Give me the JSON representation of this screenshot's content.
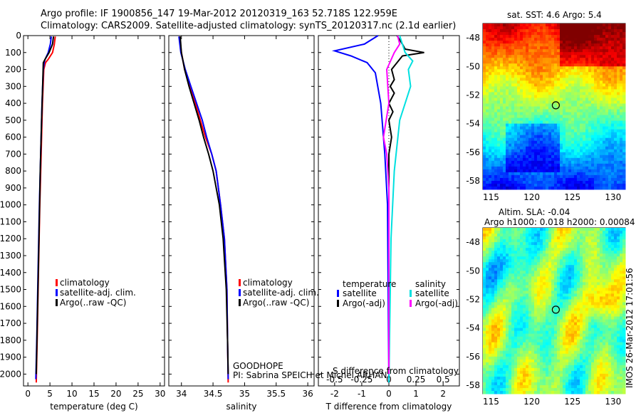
{
  "header": {
    "line1": "Argo profile: IF 1900856_147 19-Mar-2012 20120319_163 52.718S 122.959E",
    "line2": "Climatology: CARS2009. Satellite-adjusted climatology: synTS_20120317.nc (2.1d earlier)"
  },
  "panel_text": {
    "goodhope": "GOODHOPE",
    "pi": "PI: Sabrina SPEICH et Michel ARHAN",
    "s_diff": "S difference from climatology",
    "t_diff": "T difference from climatology",
    "sst_title": "sat. SST: 4.6 Argo: 5.4",
    "sla_title1": "Altim. SLA: -0.04",
    "sla_title2": "Argo h1000: 0.018 h2000: 0.00084",
    "imos_stamp": "IMOS 26-Mar-2012 17:01:56"
  },
  "colors": {
    "climatology": "#ff0000",
    "satellite": "#0000ff",
    "argo": "#000000",
    "sal_satellite": "#00e0e0",
    "sal_argo": "#ff00ff"
  },
  "chart_data": [
    {
      "type": "line",
      "xlabel": "temperature (deg C)",
      "ylabel": "",
      "xlim": [
        -1,
        31
      ],
      "ylim": [
        2070,
        0
      ],
      "xticks": [
        0,
        5,
        10,
        15,
        20,
        25,
        30
      ],
      "yticks": [
        0,
        100,
        200,
        300,
        400,
        500,
        600,
        700,
        800,
        900,
        1000,
        1100,
        1200,
        1300,
        1400,
        1500,
        1600,
        1700,
        1800,
        1900,
        2000
      ],
      "legend": [
        "climatology",
        "satellite-adj. clim.",
        "Argo(..raw -QC)"
      ],
      "series": [
        {
          "name": "climatology",
          "color": "#ff0000",
          "points": [
            [
              6.2,
              5
            ],
            [
              6.0,
              50
            ],
            [
              5.6,
              100
            ],
            [
              4.6,
              140
            ],
            [
              4.0,
              160
            ],
            [
              3.6,
              200
            ],
            [
              3.3,
              400
            ],
            [
              3.0,
              700
            ],
            [
              2.7,
              1000
            ],
            [
              2.4,
              1400
            ],
            [
              2.1,
              1800
            ],
            [
              1.9,
              2050
            ]
          ]
        },
        {
          "name": "satellite-adj. clim.",
          "color": "#0000ff",
          "points": [
            [
              5.3,
              5
            ],
            [
              5.1,
              50
            ],
            [
              4.6,
              100
            ],
            [
              3.9,
              140
            ],
            [
              3.7,
              160
            ],
            [
              3.5,
              200
            ],
            [
              3.2,
              400
            ],
            [
              2.9,
              700
            ],
            [
              2.6,
              1000
            ],
            [
              2.3,
              1400
            ],
            [
              2.0,
              1800
            ],
            [
              1.8,
              2030
            ]
          ]
        },
        {
          "name": "Argo(..raw -QC)",
          "color": "#000000",
          "points": [
            [
              5.8,
              5
            ],
            [
              5.6,
              50
            ],
            [
              4.8,
              100
            ],
            [
              3.9,
              140
            ],
            [
              3.5,
              160
            ],
            [
              3.4,
              250
            ],
            [
              3.1,
              500
            ],
            [
              2.8,
              800
            ],
            [
              2.5,
              1200
            ],
            [
              2.2,
              1600
            ],
            [
              1.9,
              2000
            ]
          ]
        }
      ]
    },
    {
      "type": "line",
      "xlabel": "salinity",
      "ylabel": "",
      "xlim": [
        33.8,
        36.1
      ],
      "ylim": [
        2070,
        0
      ],
      "xticks": [
        34,
        34.5,
        35,
        35.5,
        36
      ],
      "legend": [
        "climatology",
        "satellite-adj. clim.",
        "Argo(..raw -QC)"
      ],
      "series": [
        {
          "name": "climatology",
          "color": "#ff0000",
          "points": [
            [
              33.97,
              5
            ],
            [
              34.0,
              100
            ],
            [
              34.05,
              200
            ],
            [
              34.13,
              300
            ],
            [
              34.22,
              400
            ],
            [
              34.3,
              500
            ],
            [
              34.38,
              600
            ],
            [
              34.48,
              700
            ],
            [
              34.55,
              800
            ],
            [
              34.62,
              1000
            ],
            [
              34.68,
              1200
            ],
            [
              34.72,
              1500
            ],
            [
              34.73,
              1800
            ],
            [
              34.74,
              2050
            ]
          ]
        },
        {
          "name": "satellite-adj. clim.",
          "color": "#0000ff",
          "points": [
            [
              33.96,
              5
            ],
            [
              33.99,
              100
            ],
            [
              34.06,
              200
            ],
            [
              34.15,
              300
            ],
            [
              34.24,
              400
            ],
            [
              34.33,
              500
            ],
            [
              34.4,
              600
            ],
            [
              34.48,
              700
            ],
            [
              34.55,
              800
            ],
            [
              34.62,
              1000
            ],
            [
              34.68,
              1200
            ],
            [
              34.72,
              1500
            ],
            [
              34.73,
              1800
            ],
            [
              34.74,
              2030
            ]
          ]
        },
        {
          "name": "Argo(..raw -QC)",
          "color": "#000000",
          "points": [
            [
              33.98,
              5
            ],
            [
              34.0,
              100
            ],
            [
              34.05,
              200
            ],
            [
              34.12,
              300
            ],
            [
              34.2,
              400
            ],
            [
              34.28,
              500
            ],
            [
              34.35,
              600
            ],
            [
              34.43,
              700
            ],
            [
              34.5,
              800
            ],
            [
              34.6,
              1000
            ],
            [
              34.66,
              1200
            ],
            [
              34.71,
              1500
            ],
            [
              34.73,
              1800
            ],
            [
              34.74,
              2000
            ]
          ]
        }
      ]
    },
    {
      "type": "line",
      "xlabel": "T difference from climatology",
      "xlabel2": "S difference from climatology",
      "xlim": [
        -2.6,
        2.6
      ],
      "x2lim": [
        -0.65,
        0.65
      ],
      "ylim": [
        2070,
        0
      ],
      "xticks": [
        -2,
        -1,
        0,
        1,
        2
      ],
      "x2ticks": [
        -0.5,
        -0.25,
        0,
        0.25,
        0.5
      ],
      "legend_groups": [
        {
          "title": "temperature",
          "items": [
            "satellite",
            "Argo(-adj)"
          ]
        },
        {
          "title": "salinity",
          "items": [
            "satellite",
            "Argo(-adj)"
          ]
        }
      ],
      "series": [
        {
          "name": "satellite",
          "group": "temperature",
          "color": "#0000ff",
          "points": [
            [
              -0.4,
              0
            ],
            [
              -0.9,
              50
            ],
            [
              -2.0,
              90
            ],
            [
              -1.4,
              120
            ],
            [
              -0.8,
              160
            ],
            [
              -0.5,
              220
            ],
            [
              -0.3,
              400
            ],
            [
              -0.15,
              700
            ],
            [
              -0.05,
              1000
            ],
            [
              0,
              2050
            ]
          ]
        },
        {
          "name": "Argo(-adj)",
          "group": "temperature",
          "color": "#000000",
          "points": [
            [
              0.3,
              0
            ],
            [
              0.5,
              50
            ],
            [
              0.6,
              80
            ],
            [
              1.3,
              100
            ],
            [
              0.5,
              120
            ],
            [
              0.1,
              200
            ],
            [
              0.2,
              260
            ],
            [
              0.05,
              300
            ],
            [
              0.2,
              340
            ],
            [
              0,
              400
            ],
            [
              0.15,
              450
            ],
            [
              0,
              500
            ],
            [
              0.1,
              600
            ],
            [
              0,
              700
            ],
            [
              0,
              2000
            ]
          ]
        },
        {
          "name": "satellite",
          "group": "salinity",
          "color": "#00e0e0",
          "points": [
            [
              0.1,
              0
            ],
            [
              0.15,
              100
            ],
            [
              0.22,
              150
            ],
            [
              0.18,
              200
            ],
            [
              0.2,
              300
            ],
            [
              0.1,
              500
            ],
            [
              0.05,
              800
            ],
            [
              0.02,
              1200
            ],
            [
              0,
              2050
            ]
          ]
        },
        {
          "name": "Argo(-adj)",
          "group": "salinity",
          "color": "#ff00ff",
          "points": [
            [
              0.08,
              0
            ],
            [
              0.1,
              50
            ],
            [
              0.05,
              100
            ],
            [
              -0.02,
              200
            ],
            [
              0,
              400
            ],
            [
              -0.05,
              600
            ],
            [
              -0.02,
              700
            ],
            [
              0,
              900
            ],
            [
              0,
              2000
            ]
          ]
        }
      ]
    },
    {
      "type": "heatmap",
      "title": "sat. SST: 4.6 Argo: 5.4",
      "xlim": [
        114,
        131.5
      ],
      "ylim": [
        -58.6,
        -47
      ],
      "xticks": [
        115,
        120,
        125,
        130
      ],
      "yticks": [
        -48,
        -50,
        -52,
        -54,
        -56,
        -58
      ],
      "marker": {
        "lon": 122.959,
        "lat": -52.718
      }
    },
    {
      "type": "heatmap",
      "title": "Argo h1000: 0.018 h2000: 0.00084",
      "xlim": [
        114,
        131.5
      ],
      "ylim": [
        -58.6,
        -47
      ],
      "xticks": [
        115,
        120,
        125,
        130
      ],
      "yticks": [
        -48,
        -50,
        -52,
        -54,
        -56,
        -58
      ],
      "marker": {
        "lon": 122.959,
        "lat": -52.718
      }
    }
  ]
}
